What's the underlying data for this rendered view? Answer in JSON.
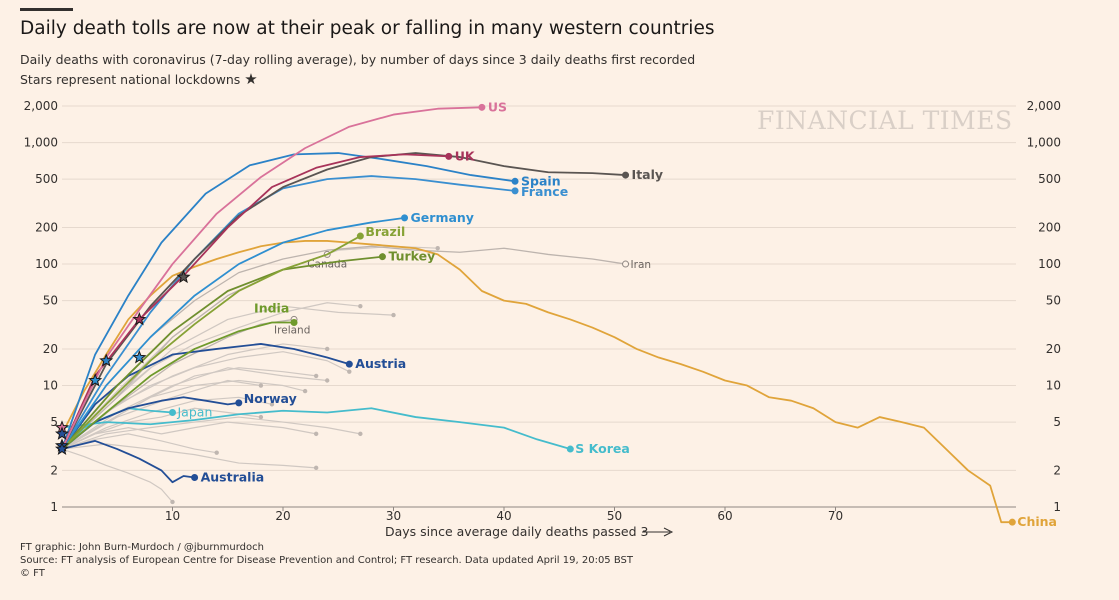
{
  "header": {
    "title": "Daily death tolls are now at their peak or falling in many western countries",
    "subtitle": "Daily deaths with coronavirus (7-day rolling average), by number of days since 3 daily deaths first recorded",
    "lockdown_note": "Stars represent national lockdowns",
    "watermark": "FINANCIAL TIMES"
  },
  "footer": {
    "credit": "FT graphic: John Burn-Murdoch / @jburnmurdoch",
    "source": "Source: FT analysis of European Centre for Disease Prevention and Control; FT research. Data updated April 19, 20:05 BST",
    "copyright": "© FT"
  },
  "chart_data": {
    "type": "line",
    "title": "Daily death tolls are now at their peak or falling in many western countries",
    "xlabel": "Days since average daily deaths passed 3",
    "ylabel": "",
    "xlim": [
      0,
      87
    ],
    "ylim": [
      1,
      2000
    ],
    "yscale": "log",
    "x_ticks": [
      10,
      20,
      30,
      40,
      50,
      60,
      70
    ],
    "y_ticks": [
      1,
      2,
      5,
      10,
      20,
      50,
      100,
      200,
      500,
      1000,
      2000
    ],
    "y_tick_labels": [
      "1",
      "2",
      "5",
      "10",
      "20",
      "50",
      "100",
      "200",
      "500",
      "1,000",
      "2,000"
    ],
    "grid": "horizontal",
    "colors": {
      "background": "#fdf1e6",
      "grid": "#e6d9ce",
      "muted": "#d0c8c2",
      "text": "#33302e",
      "US": "#d9729a",
      "UK": "#a8335a",
      "Italy": "#5a5552",
      "Spain": "#2b82c7",
      "France": "#3a8fd0",
      "Germany": "#2f8fd0",
      "Brazil": "#87a236",
      "Turkey": "#6f8f2e",
      "India": "#6f9a2c",
      "Austria": "#234e96",
      "Norway": "#234e96",
      "Australia": "#234e96",
      "Japan": "#45bccc",
      "S Korea": "#45bccc",
      "China": "#e0a43a"
    },
    "series": [
      {
        "name": "US",
        "label_style": "bold",
        "x": [
          0,
          4,
          7,
          10,
          14,
          18,
          22,
          26,
          30,
          34,
          38
        ],
        "y": [
          3,
          17,
          42,
          100,
          260,
          520,
          900,
          1350,
          1700,
          1900,
          1950
        ]
      },
      {
        "name": "UK",
        "label_style": "bold",
        "x": [
          0,
          3,
          7,
          11,
          15,
          19,
          23,
          27,
          31,
          35
        ],
        "y": [
          3,
          12,
          35,
          80,
          200,
          430,
          620,
          760,
          800,
          770
        ]
      },
      {
        "name": "Italy",
        "label_style": "bold",
        "x": [
          0,
          4,
          8,
          12,
          16,
          20,
          24,
          28,
          32,
          36,
          40,
          44,
          48,
          51
        ],
        "y": [
          3,
          15,
          45,
          110,
          250,
          430,
          600,
          760,
          820,
          760,
          640,
          570,
          560,
          540
        ]
      },
      {
        "name": "Spain",
        "label_style": "bold",
        "x": [
          0,
          3,
          6,
          9,
          13,
          17,
          21,
          25,
          29,
          33,
          37,
          41
        ],
        "y": [
          3,
          18,
          55,
          150,
          380,
          650,
          800,
          820,
          730,
          640,
          540,
          480
        ]
      },
      {
        "name": "France",
        "label_style": "bold",
        "x": [
          0,
          4,
          8,
          12,
          16,
          20,
          24,
          28,
          32,
          36,
          41
        ],
        "y": [
          3,
          12,
          40,
          110,
          260,
          420,
          500,
          530,
          500,
          450,
          400
        ]
      },
      {
        "name": "Germany",
        "label_style": "bold",
        "x": [
          0,
          4,
          8,
          12,
          16,
          20,
          24,
          28,
          31
        ],
        "y": [
          3,
          10,
          25,
          55,
          100,
          150,
          190,
          220,
          240
        ]
      },
      {
        "name": "Brazil",
        "label_style": "bold",
        "x": [
          0,
          4,
          8,
          12,
          16,
          20,
          24,
          27
        ],
        "y": [
          3,
          7,
          16,
          32,
          60,
          90,
          120,
          170
        ]
      },
      {
        "name": "Turkey",
        "label_style": "bold",
        "x": [
          0,
          5,
          10,
          15,
          20,
          25,
          29
        ],
        "y": [
          3,
          10,
          28,
          60,
          90,
          105,
          115
        ]
      },
      {
        "name": "India",
        "label_style": "bold",
        "x": [
          0,
          4,
          8,
          12,
          16,
          19,
          21
        ],
        "y": [
          3,
          6,
          12,
          20,
          28,
          33,
          33
        ]
      },
      {
        "name": "Austria",
        "label_style": "bold",
        "x": [
          0,
          3,
          6,
          10,
          14,
          18,
          21,
          24,
          26
        ],
        "y": [
          3,
          7,
          12,
          18,
          20,
          22,
          20,
          17,
          15
        ]
      },
      {
        "name": "Norway",
        "label_style": "bold",
        "x": [
          0,
          3,
          6,
          9,
          11,
          13,
          15,
          16
        ],
        "y": [
          3,
          5,
          6.5,
          7.5,
          8,
          7.5,
          7,
          7.2
        ]
      },
      {
        "name": "Australia",
        "label_style": "bold",
        "x": [
          0,
          3,
          5,
          7,
          9,
          10,
          11,
          12
        ],
        "y": [
          3,
          3.5,
          3,
          2.5,
          2,
          1.6,
          1.8,
          1.75
        ]
      },
      {
        "name": "Japan",
        "label_style": "normal",
        "x": [
          0,
          2,
          4,
          6,
          8,
          10
        ],
        "y": [
          3,
          4.5,
          5.5,
          6.5,
          6.2,
          6
        ]
      },
      {
        "name": "S Korea",
        "label_style": "bold",
        "x": [
          0,
          4,
          8,
          12,
          16,
          20,
          24,
          28,
          32,
          36,
          40,
          43,
          46
        ],
        "y": [
          4.5,
          5,
          4.8,
          5.2,
          5.8,
          6.2,
          6,
          6.5,
          5.5,
          5,
          4.5,
          3.6,
          3
        ]
      },
      {
        "name": "China",
        "label_style": "bold",
        "x": [
          0,
          2,
          4,
          6,
          8,
          10,
          12,
          14,
          16,
          18,
          20,
          22,
          24,
          26,
          28,
          30,
          32,
          34,
          36,
          38,
          40,
          42,
          44,
          46,
          48,
          50,
          52,
          54,
          56,
          58,
          60,
          62,
          64,
          66,
          68,
          70,
          72,
          74,
          76,
          78,
          80,
          82,
          84,
          85,
          86
        ],
        "y": [
          4,
          9,
          18,
          35,
          55,
          80,
          95,
          110,
          125,
          140,
          150,
          155,
          155,
          150,
          145,
          140,
          135,
          120,
          90,
          60,
          50,
          47,
          40,
          35,
          30,
          25,
          20,
          17,
          15,
          13,
          11,
          10,
          8,
          7.5,
          6.5,
          5,
          4.5,
          5.5,
          5,
          4.5,
          3,
          2,
          1.5,
          0.75,
          0.75
        ]
      },
      {
        "name": "Canada",
        "label_style": "light",
        "x": [
          0,
          5,
          10,
          15,
          20,
          24
        ],
        "y": [
          3,
          8,
          25,
          55,
          90,
          120
        ]
      },
      {
        "name": "Ireland",
        "label_style": "light",
        "x": [
          0,
          5,
          10,
          15,
          18,
          21
        ],
        "y": [
          3,
          7,
          15,
          25,
          32,
          35
        ]
      },
      {
        "name": "Iran",
        "label_style": "light",
        "x": [
          0,
          4,
          8,
          12,
          16,
          20,
          24,
          28,
          32,
          36,
          40,
          44,
          48,
          51
        ],
        "y": [
          3,
          10,
          25,
          50,
          85,
          110,
          130,
          140,
          130,
          125,
          135,
          120,
          110,
          100
        ]
      }
    ],
    "lockdowns": [
      {
        "country": "Italy",
        "x": 11,
        "y": 78
      },
      {
        "country": "UK",
        "x": 7,
        "y": 35
      },
      {
        "country": "France",
        "x": 7,
        "y": 17
      },
      {
        "country": "Spain",
        "x": 4,
        "y": 16
      },
      {
        "country": "Germany",
        "x": 3,
        "y": 11
      },
      {
        "country": "US",
        "x": 0,
        "y": 4.5
      },
      {
        "country": "Austria",
        "x": 0,
        "y": 4
      },
      {
        "country": "Norway",
        "x": 0,
        "y": 3.2
      },
      {
        "country": "Australia",
        "x": 0,
        "y": 3
      }
    ]
  }
}
